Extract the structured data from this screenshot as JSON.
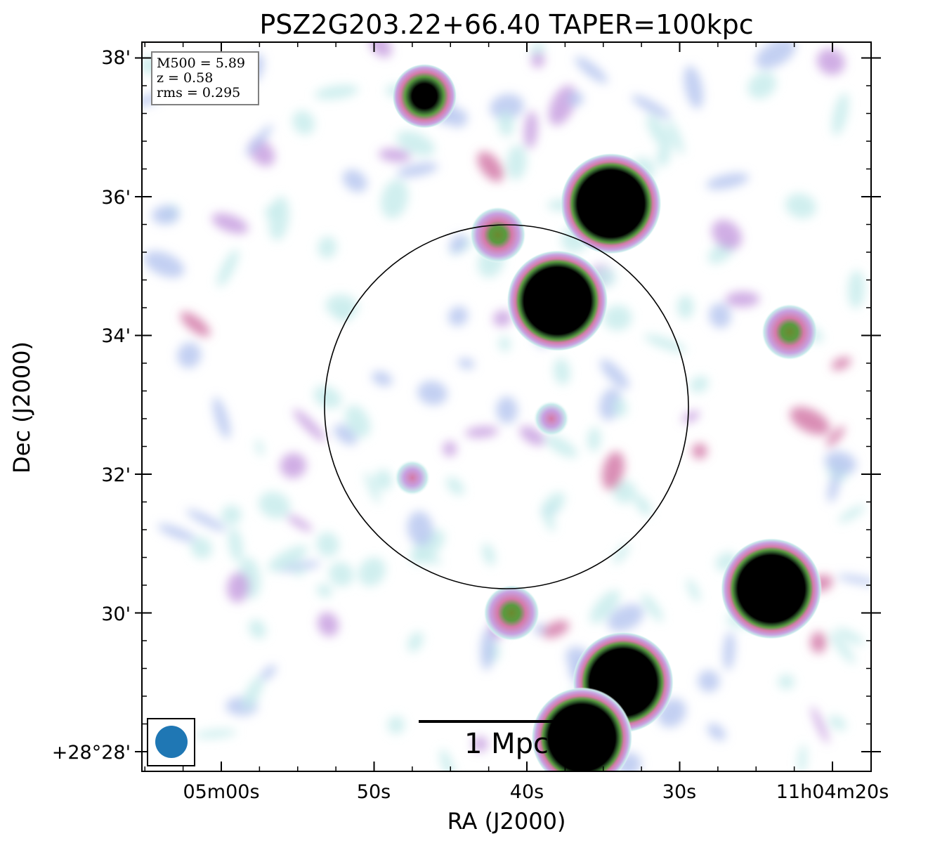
{
  "chart_data": {
    "type": "heatmap",
    "title": "PSZ2G203.22+66.40 TAPER=100kpc",
    "xlabel": "RA (J2000)",
    "ylabel": "Dec (J2000)",
    "x_ticks": [
      "05m00s",
      "50s",
      "40s",
      "30s",
      "11h04m20s"
    ],
    "y_ticks": [
      "+28°28'",
      "30'",
      "32'",
      "34'",
      "36'",
      "38'"
    ],
    "info_lines": [
      "M500 = 5.89",
      "z = 0.58",
      "rms = 0.295"
    ],
    "scalebar_label": "1 Mpc",
    "colormap": [
      "#ffffff",
      "#c8ecec",
      "#b8c8f0",
      "#c8a0e0",
      "#d47aa8",
      "#5a9a40",
      "#000000"
    ],
    "beam_color": "#1f77b4",
    "circle_color": "#000000",
    "sources": [
      {
        "ra_s": 46.7,
        "dec_m": 37.45,
        "level": "compact"
      },
      {
        "ra_s": 34.5,
        "dec_m": 35.9,
        "level": "bright"
      },
      {
        "ra_s": 38.0,
        "dec_m": 34.5,
        "level": "bright"
      },
      {
        "ra_s": 41.9,
        "dec_m": 35.45,
        "level": "medium"
      },
      {
        "ra_s": 22.8,
        "dec_m": 34.05,
        "level": "medium"
      },
      {
        "ra_s": 24.0,
        "dec_m": 30.35,
        "level": "bright"
      },
      {
        "ra_s": 33.7,
        "dec_m": 29.0,
        "level": "bright"
      },
      {
        "ra_s": 36.4,
        "dec_m": 28.2,
        "level": "bright"
      },
      {
        "ra_s": 41.0,
        "dec_m": 30.0,
        "level": "medium"
      },
      {
        "ra_s": 38.4,
        "dec_m": 32.8,
        "level": "faint"
      },
      {
        "ra_s": 47.5,
        "dec_m": 31.95,
        "level": "faint"
      }
    ]
  }
}
